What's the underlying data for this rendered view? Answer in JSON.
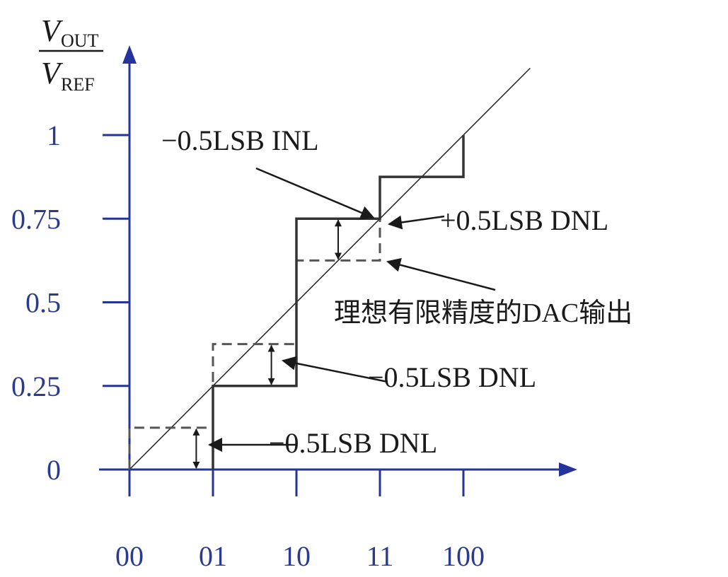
{
  "colors": {
    "axis": "#24349a",
    "ideal_line": "#222222",
    "dac_output": "#333333",
    "ideal_dashed": "#555555",
    "tick_label": "#2a3a8c",
    "text": "#1a1a1a"
  },
  "y_axis": {
    "label_symbol_top": "V",
    "label_sub_top": "OUT",
    "label_symbol_bottom": "V",
    "label_sub_bottom": "REF",
    "ticks": [
      {
        "value": 0,
        "label": "0"
      },
      {
        "value": 0.25,
        "label": "0.25"
      },
      {
        "value": 0.5,
        "label": "0.5"
      },
      {
        "value": 0.75,
        "label": "0.75"
      },
      {
        "value": 1,
        "label": "1"
      }
    ]
  },
  "x_axis": {
    "ticks": [
      {
        "value": 0,
        "label": "00"
      },
      {
        "value": 1,
        "label": "01"
      },
      {
        "value": 2,
        "label": "10"
      },
      {
        "value": 3,
        "label": "11"
      },
      {
        "value": 4,
        "label": "100"
      }
    ]
  },
  "ideal_transfer_line": {
    "from": [
      0,
      0
    ],
    "to": [
      4.8,
      1.2
    ]
  },
  "actual_dac_output": [
    [
      1,
      0
    ],
    [
      1,
      0.25
    ],
    [
      2,
      0.25
    ],
    [
      2,
      0.75
    ],
    [
      3,
      0.75
    ],
    [
      3,
      0.875
    ],
    [
      4,
      0.875
    ],
    [
      4,
      1
    ]
  ],
  "ideal_finite_resolution_output": [
    [
      0,
      0
    ],
    [
      0,
      0.125
    ],
    [
      1,
      0.125
    ],
    [
      1,
      0.375
    ],
    [
      2,
      0.375
    ],
    [
      2,
      0.625
    ],
    [
      3,
      0.625
    ],
    [
      3,
      0.75
    ]
  ],
  "dnl_markers": [
    {
      "x": 0.8,
      "y_from": 0,
      "y_to": 0.125
    },
    {
      "x": 1.7,
      "y_from": 0.25,
      "y_to": 0.375
    },
    {
      "x": 2.5,
      "y_from": 0.625,
      "y_to": 0.75
    }
  ],
  "annotations": {
    "inl": "−0.5LSB INL",
    "dnl_plus": "+0.5LSB DNL",
    "ideal_output": "理想有限精度的DAC输出",
    "dnl_minus_mid": "−0.5LSB DNL",
    "dnl_minus_low": "−0.5LSB DNL"
  }
}
